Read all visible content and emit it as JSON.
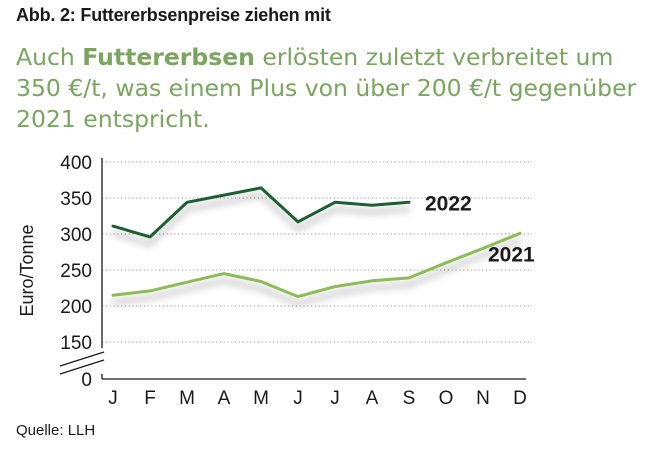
{
  "figure": {
    "title": "Abb. 2: Futtererbsenpreise ziehen mit",
    "subtitle_pre": "Auch ",
    "subtitle_bold": "Futtererbsen",
    "subtitle_post": " erlösten zuletzt verbreitet um 350 €/t, was einem Plus von über 200 €/t gegenüber 2021 entspricht.",
    "source": "Quelle: LLH"
  },
  "chart_data": {
    "type": "line",
    "title": "Abb. 2: Futtererbsenpreise ziehen mit",
    "xlabel": "",
    "ylabel": "Euro/Tonne",
    "categories": [
      "J",
      "F",
      "M",
      "A",
      "M",
      "J",
      "J",
      "A",
      "S",
      "O",
      "N",
      "D"
    ],
    "ylim": [
      150,
      400
    ],
    "yaxis_break": true,
    "yticks": [
      150,
      200,
      250,
      300,
      350,
      400
    ],
    "ytick_labels": [
      "150",
      "200",
      "250",
      "300",
      "350",
      "400"
    ],
    "baseline_label": "0",
    "grid": true,
    "series": [
      {
        "name": "2022",
        "color": "#1e5e32",
        "values": [
          311,
          296,
          344,
          354,
          364,
          317,
          344,
          340,
          344,
          null,
          null,
          null
        ]
      },
      {
        "name": "2021",
        "color": "#8dbb55",
        "values": [
          215,
          221,
          233,
          245,
          234,
          213,
          227,
          235,
          239,
          260,
          280,
          301
        ]
      }
    ]
  }
}
